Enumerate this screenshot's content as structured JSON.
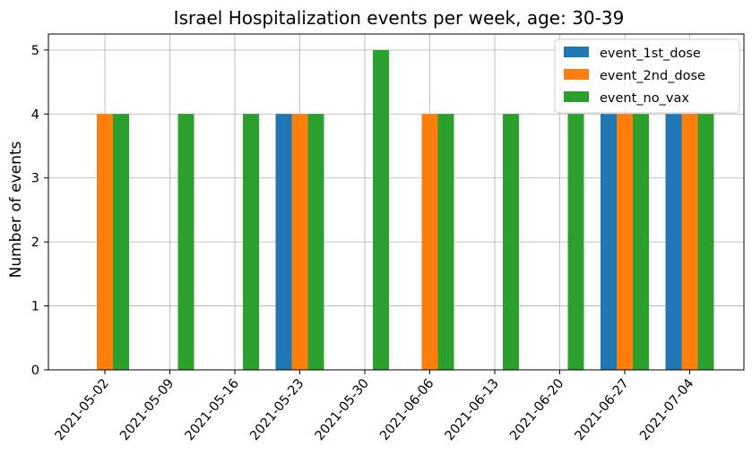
{
  "chart_data": {
    "type": "bar",
    "title": "Israel Hospitalization events per week, age: 30-39",
    "xlabel": "",
    "ylabel": "Number of events",
    "categories": [
      "2021-05-02",
      "2021-05-09",
      "2021-05-16",
      "2021-05-23",
      "2021-05-30",
      "2021-06-06",
      "2021-06-13",
      "2021-06-20",
      "2021-06-27",
      "2021-07-04"
    ],
    "series": [
      {
        "name": "event_1st_dose",
        "color": "#1f77b4",
        "values": [
          0,
          0,
          0,
          4,
          0,
          0,
          0,
          0,
          4,
          4
        ]
      },
      {
        "name": "event_2nd_dose",
        "color": "#ff7f0e",
        "values": [
          4,
          0,
          0,
          4,
          0,
          4,
          0,
          0,
          4,
          4
        ]
      },
      {
        "name": "event_no_vax",
        "color": "#2ca02c",
        "values": [
          4,
          4,
          4,
          4,
          5,
          4,
          4,
          4,
          4,
          4
        ]
      }
    ],
    "yticks": [
      0,
      1,
      2,
      3,
      4,
      5
    ],
    "ylim": [
      0,
      5.25
    ],
    "grid": true,
    "legend_position": "top-right"
  }
}
